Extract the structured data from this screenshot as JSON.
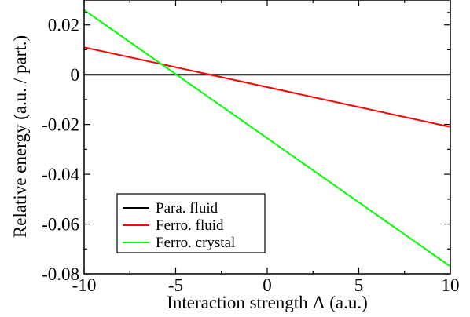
{
  "chart_data": {
    "type": "line",
    "title": "",
    "xlabel": "Interaction strength Λ (a.u.)",
    "ylabel": "Relative energy (a.u. / part.)",
    "xlim": [
      -10,
      10
    ],
    "ylim": [
      -0.08,
      0.03
    ],
    "x_ticks": [
      {
        "value": -10,
        "label": "-10"
      },
      {
        "value": -5,
        "label": "-5"
      },
      {
        "value": 0,
        "label": "0"
      },
      {
        "value": 5,
        "label": "5"
      },
      {
        "value": 10,
        "label": "10"
      }
    ],
    "y_ticks": [
      {
        "value": -0.08,
        "label": "-0.08"
      },
      {
        "value": -0.06,
        "label": "-0.06"
      },
      {
        "value": -0.04,
        "label": "-0.04"
      },
      {
        "value": -0.02,
        "label": "-0.02"
      },
      {
        "value": 0,
        "label": "0"
      },
      {
        "value": 0.02,
        "label": "0.02"
      }
    ],
    "grid": false,
    "legend_position": "bottom-left",
    "series": [
      {
        "name": "Para. fluid",
        "color": "#000000",
        "x": [
          -10,
          10
        ],
        "y": [
          0,
          0
        ]
      },
      {
        "name": "Ferro. fluid",
        "color": "#ff0000",
        "x": [
          -10,
          10
        ],
        "y": [
          0.011,
          -0.021
        ]
      },
      {
        "name": "Ferro. crystal",
        "color": "#00ff00",
        "x": [
          -10,
          10
        ],
        "y": [
          0.026,
          -0.077
        ]
      }
    ]
  }
}
